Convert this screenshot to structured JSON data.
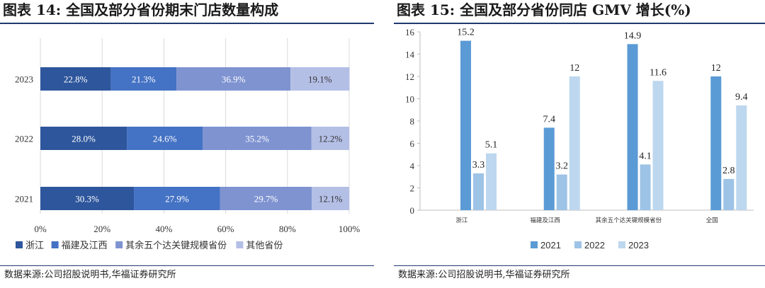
{
  "left": {
    "title": "图表 14:  全国及部分省份期末门店数量构成",
    "source": "数据来源:公司招股说明书,华福证券研究所"
  },
  "right": {
    "title": "图表 15:  全国及部分省份同店 GMV 增长(%)",
    "source": "数据来源:公司招股说明书,华福证券研究所"
  },
  "chart_data": [
    {
      "type": "bar",
      "orientation": "horizontal",
      "stacked": "percent",
      "categories": [
        "2023",
        "2022",
        "2021"
      ],
      "series": [
        {
          "name": "浙江",
          "color": "#2e569c",
          "values": [
            22.8,
            28.0,
            30.3
          ],
          "labels": [
            "22.8%",
            "28.0%",
            "30.3%"
          ]
        },
        {
          "name": "福建及江西",
          "color": "#4472c4",
          "values": [
            21.3,
            24.6,
            27.9
          ],
          "labels": [
            "21.3%",
            "24.6%",
            "27.9%"
          ]
        },
        {
          "name": "其余五个达关键规模省份",
          "color": "#7f93d1",
          "values": [
            36.9,
            35.2,
            29.7
          ],
          "labels": [
            "36.9%",
            "35.2%",
            "29.7%"
          ]
        },
        {
          "name": "其他省份",
          "color": "#b4bfe6",
          "values": [
            19.1,
            12.2,
            12.1
          ],
          "labels": [
            "19.1%",
            "12.2%",
            "12.1%"
          ]
        }
      ],
      "x_ticks": [
        "0%",
        "20%",
        "40%",
        "60%",
        "80%",
        "100%"
      ],
      "xlim": [
        0,
        100
      ],
      "grid": "vertical",
      "legend": "bottom"
    },
    {
      "type": "bar",
      "orientation": "vertical",
      "categories": [
        "浙江",
        "福建及江西",
        "其余五个达关键规模省份",
        "全国"
      ],
      "series": [
        {
          "name": "2021",
          "color": "#5b9bd5",
          "values": [
            15.2,
            7.4,
            14.9,
            12
          ],
          "labels": [
            "15.2",
            "7.4",
            "14.9",
            "12"
          ]
        },
        {
          "name": "2022",
          "color": "#9dc3e6",
          "values": [
            3.3,
            3.2,
            4.1,
            2.8
          ],
          "labels": [
            "3.3",
            "3.2",
            "4.1",
            "2.8"
          ]
        },
        {
          "name": "2023",
          "color": "#bdd7ee",
          "values": [
            5.1,
            12,
            11.6,
            9.4
          ],
          "labels": [
            "5.1",
            "12",
            "11.6",
            "9.4"
          ]
        }
      ],
      "y_ticks": [
        "0",
        "2",
        "4",
        "6",
        "8",
        "10",
        "12",
        "14",
        "16"
      ],
      "ylim": [
        0,
        16
      ],
      "grid": false,
      "legend": "bottom"
    }
  ]
}
